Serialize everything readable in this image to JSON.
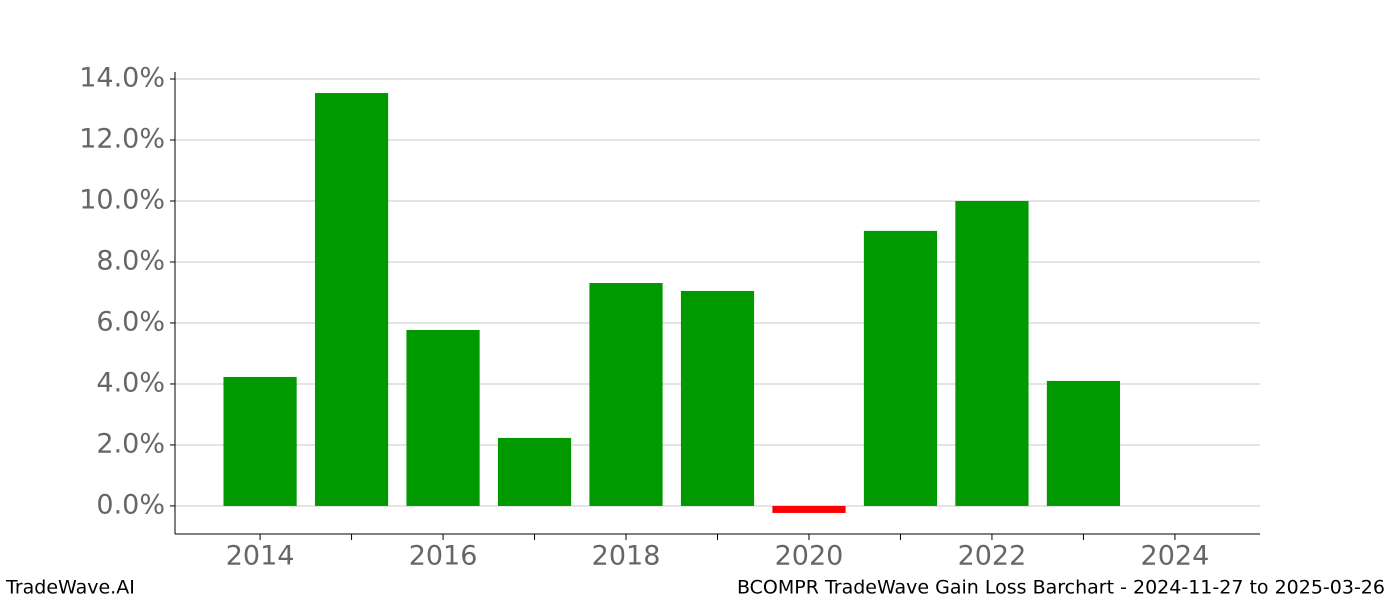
{
  "chart_data": {
    "type": "bar",
    "x": [
      2014,
      2015,
      2016,
      2017,
      2018,
      2019,
      2020,
      2021,
      2022,
      2023
    ],
    "values": [
      4.23,
      13.54,
      5.77,
      2.23,
      7.31,
      7.05,
      -0.23,
      9.02,
      10.0,
      4.1
    ],
    "positive_color": "#009900",
    "negative_color": "#ff0000",
    "xlim": [
      2013.07,
      2024.93
    ],
    "xticks": [
      2014,
      2016,
      2018,
      2020,
      2022,
      2024
    ],
    "xminorticks": [
      2015,
      2017,
      2019,
      2021,
      2023
    ],
    "bar_width": 0.8,
    "ylim": [
      -0.92,
      14.23
    ],
    "yticks": [
      {
        "value": 0,
        "label": "0.0%"
      },
      {
        "value": 2,
        "label": "2.0%"
      },
      {
        "value": 4,
        "label": "4.0%"
      },
      {
        "value": 6,
        "label": "6.0%"
      },
      {
        "value": 8,
        "label": "8.0%"
      },
      {
        "value": 10,
        "label": "10.0%"
      },
      {
        "value": 12,
        "label": "12.0%"
      },
      {
        "value": 14,
        "label": "14.0%"
      }
    ],
    "grid": true,
    "watermark": "TradeWave.AI",
    "title": "BCOMPR TradeWave Gain Loss Barchart - 2024-11-27 to 2025-03-26"
  }
}
